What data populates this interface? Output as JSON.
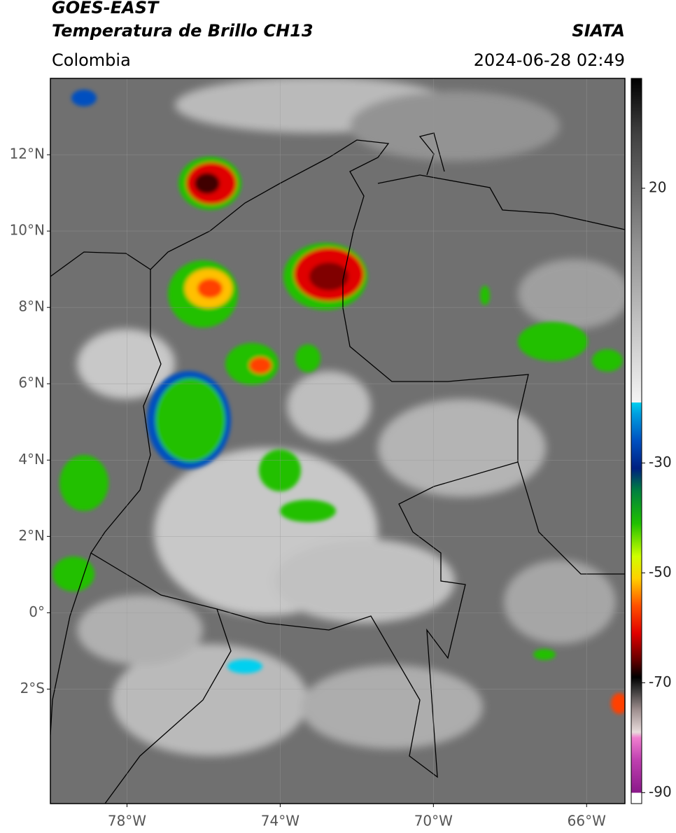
{
  "header": {
    "satellite": "GOES-EAST",
    "product": "Temperatura de Brillo CH13",
    "source": "SIATA",
    "region": "Colombia",
    "datetime": "2024-06-28 02:49"
  },
  "map": {
    "xlim": [
      -80,
      -65
    ],
    "ylim": [
      -5,
      14
    ],
    "grid": true,
    "xticks": [
      {
        "value": -78,
        "label": "78°W"
      },
      {
        "value": -74,
        "label": "74°W"
      },
      {
        "value": -70,
        "label": "70°W"
      },
      {
        "value": -66,
        "label": "66°W"
      }
    ],
    "yticks": [
      {
        "value": 12,
        "label": "12°N"
      },
      {
        "value": 10,
        "label": "10°N"
      },
      {
        "value": 8,
        "label": "8°N"
      },
      {
        "value": 6,
        "label": "6°N"
      },
      {
        "value": 4,
        "label": "4°N"
      },
      {
        "value": 2,
        "label": "2°N"
      },
      {
        "value": 0,
        "label": "0°"
      },
      {
        "value": -2,
        "label": "2°S"
      }
    ]
  },
  "colorbar": {
    "lim": [
      -92,
      40
    ],
    "ticks": [
      20,
      -30,
      -50,
      -70,
      -90
    ],
    "stops": [
      {
        "value": -92,
        "color": "#ffffff"
      },
      {
        "value": -90,
        "color": "#ffffff"
      },
      {
        "value": -90,
        "color": "#8a1a8a"
      },
      {
        "value": -84,
        "color": "#c040b0"
      },
      {
        "value": -80,
        "color": "#f080d0"
      },
      {
        "value": -79,
        "color": "#e8dcdc"
      },
      {
        "value": -75,
        "color": "#a09090"
      },
      {
        "value": -71,
        "color": "#303030"
      },
      {
        "value": -69,
        "color": "#000000"
      },
      {
        "value": -66,
        "color": "#600000"
      },
      {
        "value": -61,
        "color": "#e00000"
      },
      {
        "value": -56,
        "color": "#ff5000"
      },
      {
        "value": -51,
        "color": "#ffd000"
      },
      {
        "value": -47,
        "color": "#d0ff00"
      },
      {
        "value": -41,
        "color": "#20c000"
      },
      {
        "value": -35,
        "color": "#008040"
      },
      {
        "value": -31,
        "color": "#002080"
      },
      {
        "value": -26,
        "color": "#0050c0"
      },
      {
        "value": -21,
        "color": "#00a0e0"
      },
      {
        "value": -19,
        "color": "#00d0f0"
      },
      {
        "value": -19,
        "color": "#f4f4f4"
      },
      {
        "value": 10,
        "color": "#909090"
      },
      {
        "value": 30,
        "color": "#404040"
      },
      {
        "value": 40,
        "color": "#000000"
      }
    ]
  }
}
